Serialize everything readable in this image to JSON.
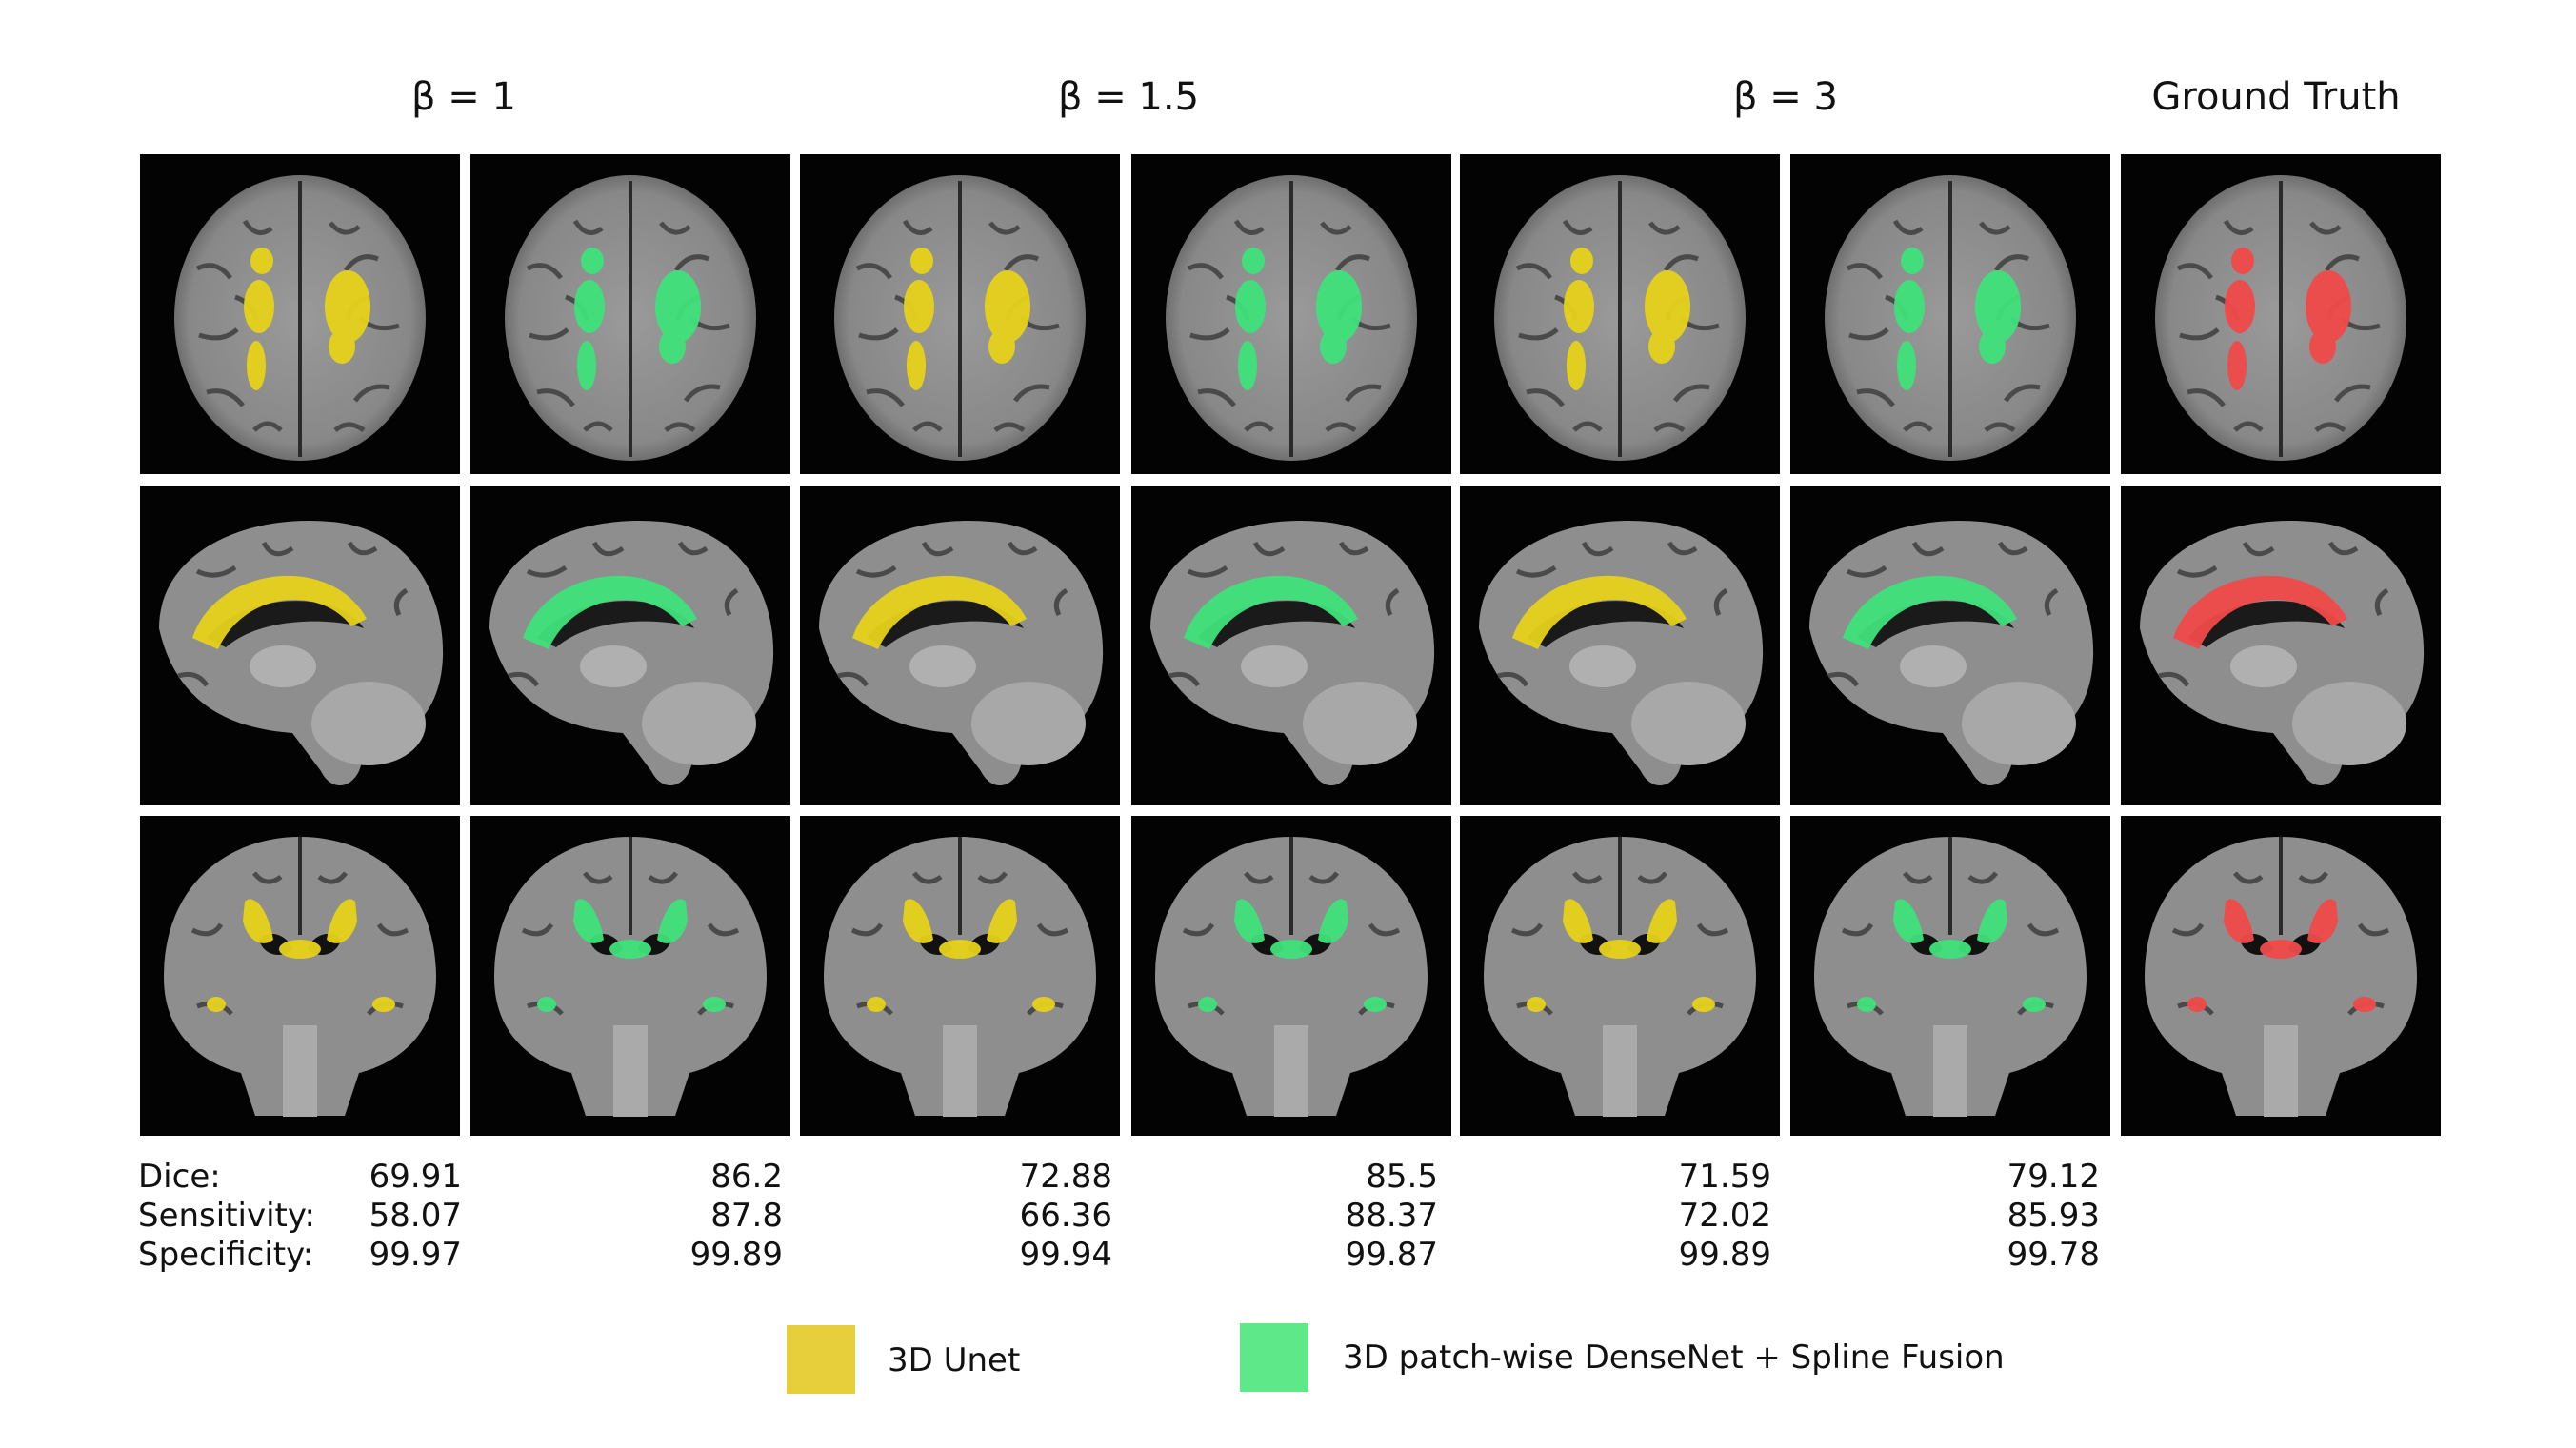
{
  "headers": [
    {
      "text": "β = 1"
    },
    {
      "text": "β = 1.5"
    },
    {
      "text": "β = 3"
    },
    {
      "text": "Ground Truth"
    }
  ],
  "metric_labels": [
    "Dice:",
    "Sensitivity:",
    "Specificity:"
  ],
  "metrics": [
    {
      "model": "3D Unet",
      "beta": "1",
      "values": [
        "69.91",
        "58.07",
        "99.97"
      ]
    },
    {
      "model": "3D patch-wise DenseNet + Spline Fusion",
      "beta": "1",
      "values": [
        "86.2",
        "87.8",
        "99.89"
      ]
    },
    {
      "model": "3D Unet",
      "beta": "1.5",
      "values": [
        "72.88",
        "66.36",
        "99.94"
      ]
    },
    {
      "model": "3D patch-wise DenseNet + Spline Fusion",
      "beta": "1.5",
      "values": [
        "85.5",
        "88.37",
        "99.87"
      ]
    },
    {
      "model": "3D Unet",
      "beta": "3",
      "values": [
        "71.59",
        "72.02",
        "99.89"
      ]
    },
    {
      "model": "3D patch-wise DenseNet + Spline Fusion",
      "beta": "3",
      "values": [
        "79.12",
        "85.93",
        "99.78"
      ]
    }
  ],
  "legend": [
    {
      "label": "3D Unet",
      "color": "#e6cf3a"
    },
    {
      "label": "3D patch-wise DenseNet + Spline Fusion",
      "color": "#5ee88a"
    }
  ],
  "overlay_colors": {
    "unet": "#e6d21a",
    "densenet": "#3fe27a",
    "ground_truth": "#f04a4a"
  },
  "rows": [
    "axial",
    "sagittal",
    "coronal"
  ]
}
